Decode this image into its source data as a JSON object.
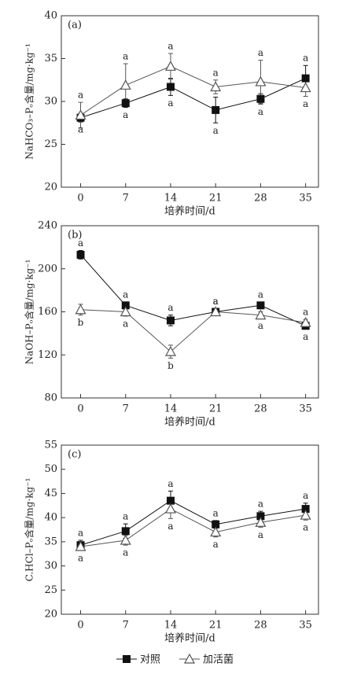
{
  "chart_data": [
    {
      "type": "line",
      "panel_label": "(a)",
      "y_label": "NaHCO₃–Pₒ含量/mg·kg⁻¹",
      "x_label": "培养时间/d",
      "x": [
        0,
        7,
        14,
        21,
        28,
        35
      ],
      "xlim": [
        -3,
        37
      ],
      "xticks": [
        0,
        7,
        14,
        21,
        28,
        35
      ],
      "ylim": [
        20,
        40
      ],
      "yticks": [
        20,
        25,
        30,
        35,
        40
      ],
      "series": [
        {
          "marker": "square",
          "color": "#111111",
          "values": [
            28.1,
            29.8,
            31.7,
            29.0,
            30.3,
            32.7
          ],
          "errors": [
            0.5,
            0.5,
            1.0,
            1.5,
            0.6,
            1.5
          ],
          "letters": [
            "a",
            "a",
            "a",
            "a",
            "a",
            "a"
          ]
        },
        {
          "marker": "triangle",
          "color": "#555555",
          "values": [
            28.4,
            31.9,
            34.1,
            31.7,
            32.3,
            31.6
          ],
          "errors": [
            1.5,
            2.5,
            1.5,
            0.8,
            2.5,
            1.0
          ],
          "letters": [
            "a",
            "a",
            "a",
            "a",
            "a",
            "a"
          ]
        }
      ]
    },
    {
      "type": "line",
      "panel_label": "(b)",
      "y_label": "NaOH–Pₒ含量/mg·kg⁻¹",
      "x_label": "培养时间/d",
      "x": [
        0,
        7,
        14,
        21,
        28,
        35
      ],
      "xlim": [
        -3,
        37
      ],
      "xticks": [
        0,
        7,
        14,
        21,
        28,
        35
      ],
      "ylim": [
        80,
        240
      ],
      "yticks": [
        80,
        120,
        160,
        200,
        240
      ],
      "series": [
        {
          "marker": "square",
          "color": "#111111",
          "values": [
            213,
            166,
            152,
            160,
            166,
            147
          ],
          "errors": [
            4,
            3,
            5,
            3,
            3,
            3
          ],
          "letters": [
            "a",
            "a",
            "a",
            "a",
            "a",
            "a"
          ]
        },
        {
          "marker": "triangle",
          "color": "#555555",
          "values": [
            162,
            160,
            123,
            160,
            157,
            150
          ],
          "errors": [
            5,
            4,
            6,
            3,
            3,
            3
          ],
          "letters": [
            "b",
            "a",
            "b",
            "a",
            "a",
            "a"
          ]
        }
      ]
    },
    {
      "type": "line",
      "panel_label": "(c)",
      "y_label": "C.HCl–Pₒ含量/mg·kg⁻¹",
      "x_label": "培养时间/d",
      "x": [
        0,
        7,
        14,
        21,
        28,
        35
      ],
      "xlim": [
        -3,
        37
      ],
      "xticks": [
        0,
        7,
        14,
        21,
        28,
        35
      ],
      "ylim": [
        20,
        55
      ],
      "yticks": [
        20,
        25,
        30,
        35,
        40,
        45,
        50,
        55
      ],
      "series": [
        {
          "marker": "square",
          "color": "#111111",
          "values": [
            34.3,
            37.2,
            43.5,
            38.6,
            40.3,
            41.8
          ],
          "errors": [
            1.0,
            1.5,
            2.0,
            0.8,
            1.0,
            1.2
          ],
          "letters": [
            "a",
            "a",
            "a",
            "a",
            "a",
            "a"
          ]
        },
        {
          "marker": "triangle",
          "color": "#555555",
          "values": [
            34.0,
            35.3,
            41.8,
            37.0,
            39.0,
            40.5
          ],
          "errors": [
            0.8,
            1.0,
            2.0,
            1.0,
            1.0,
            1.0
          ],
          "letters": [
            "a",
            "a",
            "a",
            "a",
            "a",
            "a"
          ]
        }
      ]
    }
  ],
  "legend": [
    {
      "name": "对照",
      "marker": "square",
      "color": "#111111"
    },
    {
      "name": "加活菌",
      "marker": "triangle",
      "color": "#555555"
    }
  ]
}
